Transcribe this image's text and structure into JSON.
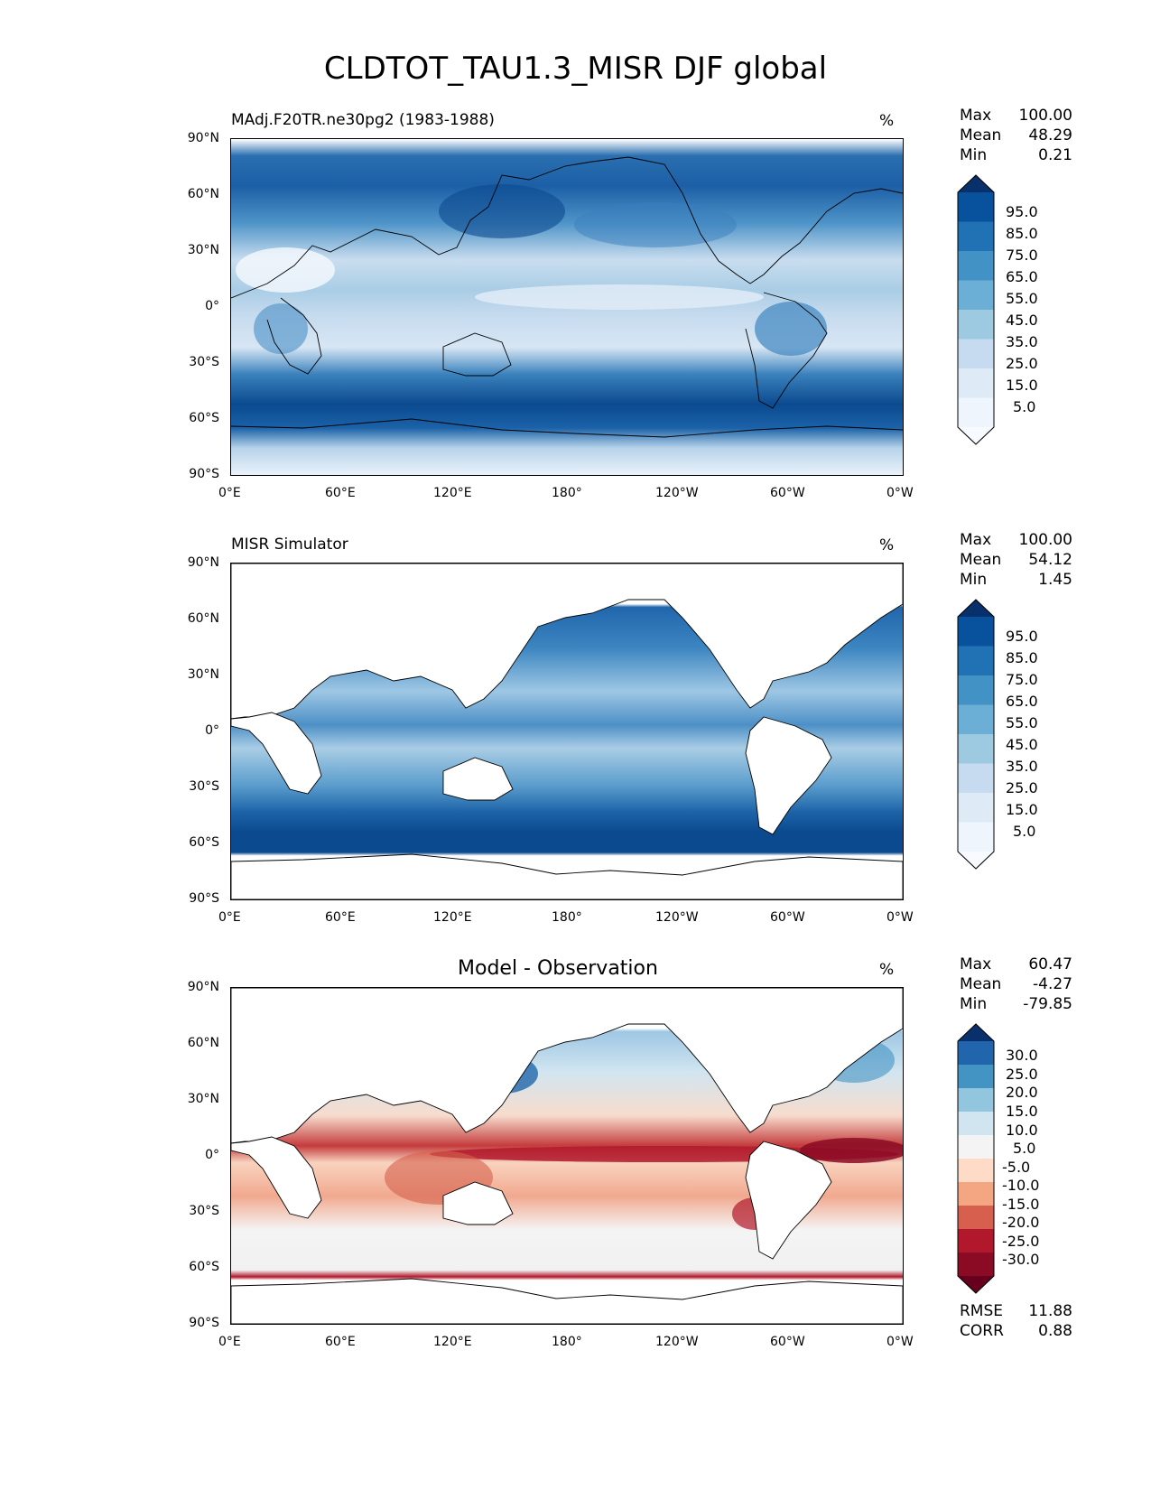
{
  "figure": {
    "title": "CLDTOT_TAU1.3_MISR DJF global"
  },
  "panels": [
    {
      "title": "MAdj.F20TR.ne30pg2 (1983-1988)",
      "unit": "%",
      "stats": [
        {
          "label": "Max",
          "value": "100.00"
        },
        {
          "label": "Mean",
          "value": "48.29"
        },
        {
          "label": "Min",
          "value": "0.21"
        }
      ],
      "colorbar": {
        "ticks": [
          "95.0",
          "85.0",
          "75.0",
          "65.0",
          "55.0",
          "45.0",
          "35.0",
          "25.0",
          "15.0",
          "5.0"
        ],
        "colors": [
          "#08306b",
          "#08519c",
          "#2171b5",
          "#4292c6",
          "#6baed6",
          "#9ecae1",
          "#c6dbef",
          "#deebf7",
          "#eef5fc",
          "#f7fbff"
        ]
      }
    },
    {
      "title": "MISR Simulator",
      "unit": "%",
      "stats": [
        {
          "label": "Max",
          "value": "100.00"
        },
        {
          "label": "Mean",
          "value": "54.12"
        },
        {
          "label": "Min",
          "value": "1.45"
        }
      ],
      "colorbar": {
        "ticks": [
          "95.0",
          "85.0",
          "75.0",
          "65.0",
          "55.0",
          "45.0",
          "35.0",
          "25.0",
          "15.0",
          "5.0"
        ],
        "colors": [
          "#08306b",
          "#08519c",
          "#2171b5",
          "#4292c6",
          "#6baed6",
          "#9ecae1",
          "#c6dbef",
          "#deebf7",
          "#eef5fc",
          "#f7fbff"
        ]
      }
    },
    {
      "title": "Model - Observation",
      "unit": "%",
      "stats": [
        {
          "label": "Max",
          "value": "60.47"
        },
        {
          "label": "Mean",
          "value": "-4.27"
        },
        {
          "label": "Min",
          "value": "-79.85"
        }
      ],
      "extra_stats": [
        {
          "label": "RMSE",
          "value": "11.88"
        },
        {
          "label": "CORR",
          "value": "0.88"
        }
      ],
      "colorbar": {
        "ticks": [
          "30.0",
          "25.0",
          "20.0",
          "15.0",
          "10.0",
          "5.0",
          "-5.0",
          "-10.0",
          "-15.0",
          "-20.0",
          "-25.0",
          "-30.0"
        ],
        "colors": [
          "#08306b",
          "#2166ac",
          "#4393c3",
          "#92c5de",
          "#d1e5f0",
          "#f4f4f4",
          "#fddbc7",
          "#f4a582",
          "#d6604d",
          "#b2182b",
          "#8b0a24",
          "#67001f"
        ]
      }
    }
  ],
  "axes": {
    "lat_ticks": [
      "90°N",
      "60°N",
      "30°N",
      "0°",
      "30°S",
      "60°S",
      "90°S"
    ],
    "lon_ticks": [
      "0°E",
      "60°E",
      "120°E",
      "180°",
      "120°W",
      "60°W",
      "0°W"
    ]
  }
}
